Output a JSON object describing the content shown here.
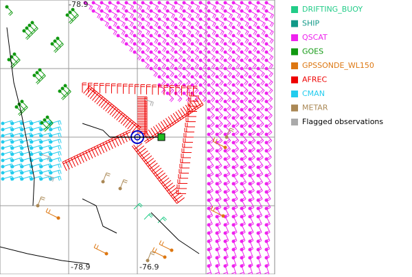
{
  "legend": {
    "items": [
      {
        "label": "DRIFTING_BUOY",
        "color": "#22cc88"
      },
      {
        "label": "SHIP",
        "color": "#119988"
      },
      {
        "label": "QSCAT",
        "color": "#ee22ee"
      },
      {
        "label": "GOES",
        "color": "#119911"
      },
      {
        "label": "GPSSONDE_WL150",
        "color": "#dd7711"
      },
      {
        "label": "AFREC",
        "color": "#ee0000"
      },
      {
        "label": "CMAN",
        "color": "#22ccee"
      },
      {
        "label": "METAR",
        "color": "#aa8855"
      },
      {
        "label": "Flagged observations",
        "color": "#aaaaaa"
      }
    ]
  },
  "map": {
    "grid_labels": [
      "-78.9",
      "-78.9",
      "-76.9"
    ]
  }
}
